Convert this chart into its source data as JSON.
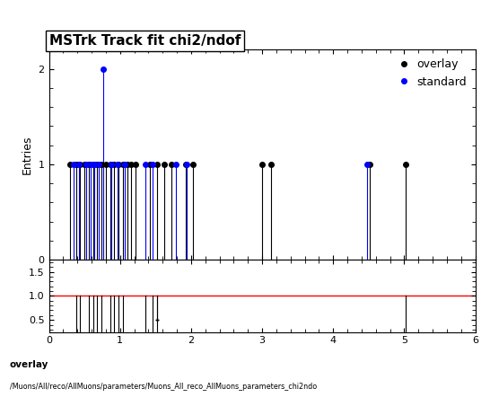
{
  "title": "MSTrk Track fit chi2/ndof",
  "ylabel_main": "Entries",
  "xlim": [
    0,
    6
  ],
  "ylim_main": [
    0,
    2.2
  ],
  "ylim_ratio": [
    0.25,
    1.75
  ],
  "overlay_color": "#000000",
  "standard_color": "#0000ff",
  "ratio_line_color": "#ff0000",
  "overlay_label": "overlay",
  "standard_label": "standard",
  "footer_text1": "overlay",
  "footer_text2": "/Muons/All/reco/AllMuons/parameters/Muons_All_reco_AllMuons_parameters_chi2ndo",
  "overlay_x": [
    0.3,
    0.38,
    0.44,
    0.5,
    0.56,
    0.62,
    0.68,
    0.74,
    0.8,
    0.86,
    0.92,
    0.98,
    1.04,
    1.1,
    1.16,
    1.22,
    1.42,
    1.52,
    1.62,
    1.72,
    1.92,
    2.02,
    3.0,
    3.12,
    4.52,
    5.02
  ],
  "overlay_y": [
    1,
    1,
    1,
    1,
    1,
    1,
    1,
    1,
    1,
    1,
    1,
    1,
    1,
    1,
    1,
    1,
    1,
    1,
    1,
    1,
    1,
    1,
    1,
    1,
    1,
    1
  ],
  "standard_x": [
    0.34,
    0.42,
    0.52,
    0.58,
    0.64,
    0.7,
    0.76,
    0.88,
    0.96,
    1.06,
    1.36,
    1.46,
    1.78,
    1.94,
    4.48
  ],
  "standard_y": [
    1,
    1,
    1,
    1,
    1,
    1,
    2,
    1,
    1,
    1,
    1,
    1,
    1,
    1,
    1
  ],
  "ratio_lines_x": [
    0.38,
    0.44,
    0.56,
    0.62,
    0.68,
    0.74,
    0.86,
    0.92,
    0.98,
    1.04,
    1.36,
    1.46,
    5.02
  ],
  "ratio_lines_y": [
    1,
    1,
    1,
    1,
    1,
    1,
    1,
    1,
    1,
    1,
    1,
    1,
    1
  ],
  "ratio_spike_x": [
    1.52
  ],
  "ratio_spike_y": [
    0.5
  ],
  "ratio_yticks": [
    0.5,
    1.0,
    1.5
  ],
  "main_yticks": [
    0,
    1,
    2
  ],
  "marker_size": 4,
  "line_width": 0.8,
  "title_fontsize": 11,
  "label_fontsize": 9,
  "tick_fontsize": 8
}
